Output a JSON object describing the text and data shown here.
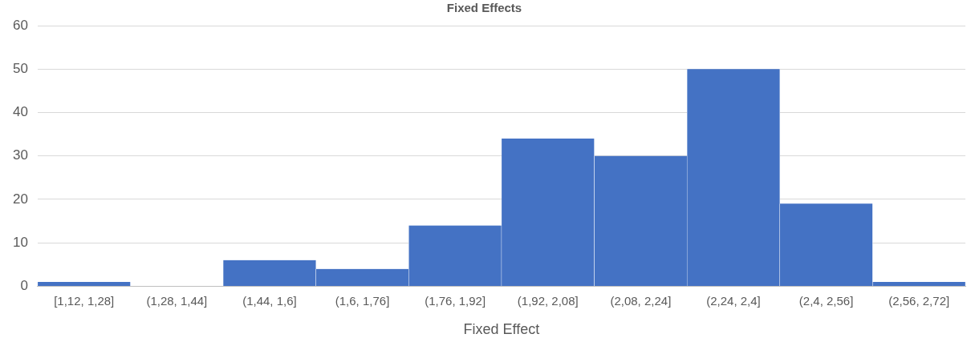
{
  "chart_data": {
    "type": "bar",
    "title": "Fixed Effects",
    "xlabel": "Fixed Effect",
    "categories": [
      "[1,12, 1,28]",
      "(1,28, 1,44]",
      "(1,44, 1,6]",
      "(1,6, 1,76]",
      "(1,76, 1,92]",
      "(1,92, 2,08]",
      "(2,08, 2,24]",
      "(2,24, 2,4]",
      "(2,4, 2,56]",
      "(2,56, 2,72]"
    ],
    "values": [
      1,
      0,
      6,
      4,
      14,
      34,
      30,
      50,
      19,
      1
    ],
    "color": "#4472c4",
    "ylim": [
      0,
      60
    ],
    "yticks": [
      0,
      10,
      20,
      30,
      40,
      50,
      60
    ],
    "grid": "y",
    "legend": false
  }
}
